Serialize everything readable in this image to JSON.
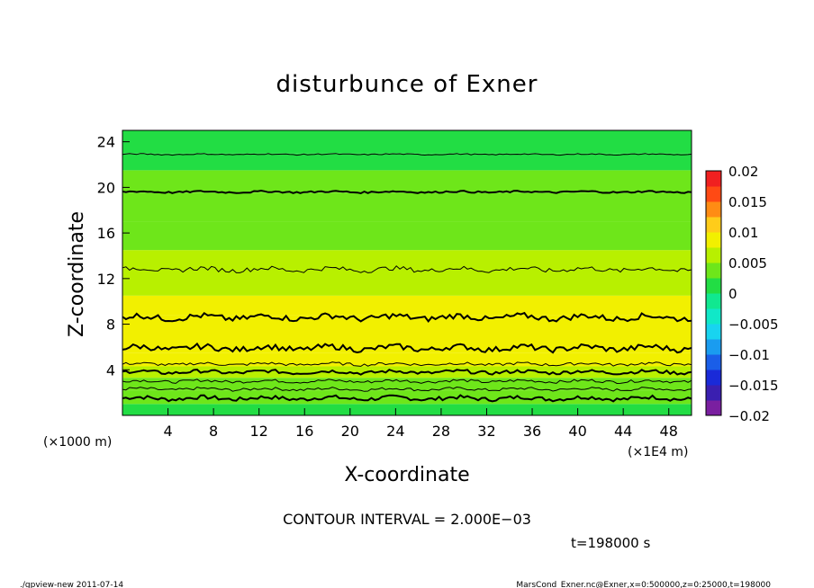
{
  "chart_data": {
    "type": "heatmap",
    "title": "disturbunce of Exner",
    "xlabel": "X-coordinate",
    "ylabel": "Z-coordinate",
    "x_unit_left": "(×1000 m)",
    "x_unit_right": "(×1E4 m)",
    "x_ticks": [
      "4",
      "8",
      "12",
      "16",
      "20",
      "24",
      "28",
      "32",
      "36",
      "40",
      "44",
      "48"
    ],
    "y_ticks": [
      "4",
      "8",
      "12",
      "16",
      "20",
      "24"
    ],
    "xlim": [
      0,
      50
    ],
    "ylim": [
      0,
      25
    ],
    "colorbar": {
      "ticks": [
        "0.02",
        "0.015",
        "0.01",
        "0.005",
        "0",
        "−0.005",
        "−0.01",
        "−0.015",
        "−0.02"
      ],
      "range": [
        -0.02,
        0.02
      ]
    },
    "contour_interval_label": "CONTOUR INTERVAL = 2.000E−03",
    "time_label": "t=198000 s",
    "bands": [
      {
        "z0": 0.0,
        "z1": 1.0,
        "value": 0.0005
      },
      {
        "z0": 1.0,
        "z1": 2.2,
        "value": 0.0025
      },
      {
        "z0": 2.2,
        "z1": 3.3,
        "value": 0.0045
      },
      {
        "z0": 3.3,
        "z1": 4.3,
        "value": 0.0065
      },
      {
        "z0": 4.3,
        "z1": 5.5,
        "value": 0.0075
      },
      {
        "z0": 5.5,
        "z1": 8.8,
        "value": 0.0095
      },
      {
        "z0": 8.8,
        "z1": 10.5,
        "value": 0.0075
      },
      {
        "z0": 10.5,
        "z1": 12.5,
        "value": 0.0065
      },
      {
        "z0": 12.5,
        "z1": 14.5,
        "value": 0.0055
      },
      {
        "z0": 14.5,
        "z1": 17.0,
        "value": 0.0045
      },
      {
        "z0": 17.0,
        "z1": 19.5,
        "value": 0.0035
      },
      {
        "z0": 19.5,
        "z1": 21.5,
        "value": 0.0025
      },
      {
        "z0": 21.5,
        "z1": 23.0,
        "value": 0.0015
      },
      {
        "z0": 23.0,
        "z1": 25.0,
        "value": 0.0005
      }
    ],
    "contours": [
      {
        "z": 1.5,
        "style": "bold",
        "amp": 0.35
      },
      {
        "z": 2.3,
        "style": "thin",
        "amp": 0.25
      },
      {
        "z": 3.0,
        "style": "thin",
        "amp": 0.25
      },
      {
        "z": 3.8,
        "style": "bold",
        "amp": 0.3
      },
      {
        "z": 4.5,
        "style": "thin",
        "amp": 0.25
      },
      {
        "z": 5.9,
        "style": "bold",
        "amp": 0.5
      },
      {
        "z": 8.6,
        "style": "bold",
        "amp": 0.5
      },
      {
        "z": 12.8,
        "style": "thin",
        "amp": 0.4
      },
      {
        "z": 19.6,
        "style": "bold",
        "amp": 0.15
      },
      {
        "z": 22.9,
        "style": "thin",
        "amp": 0.1
      }
    ]
  },
  "footer": {
    "left": "./gpview-new  2011-07-14",
    "right": "MarsCond_Exner.nc@Exner,x=0:500000,z=0:25000,t=198000"
  }
}
